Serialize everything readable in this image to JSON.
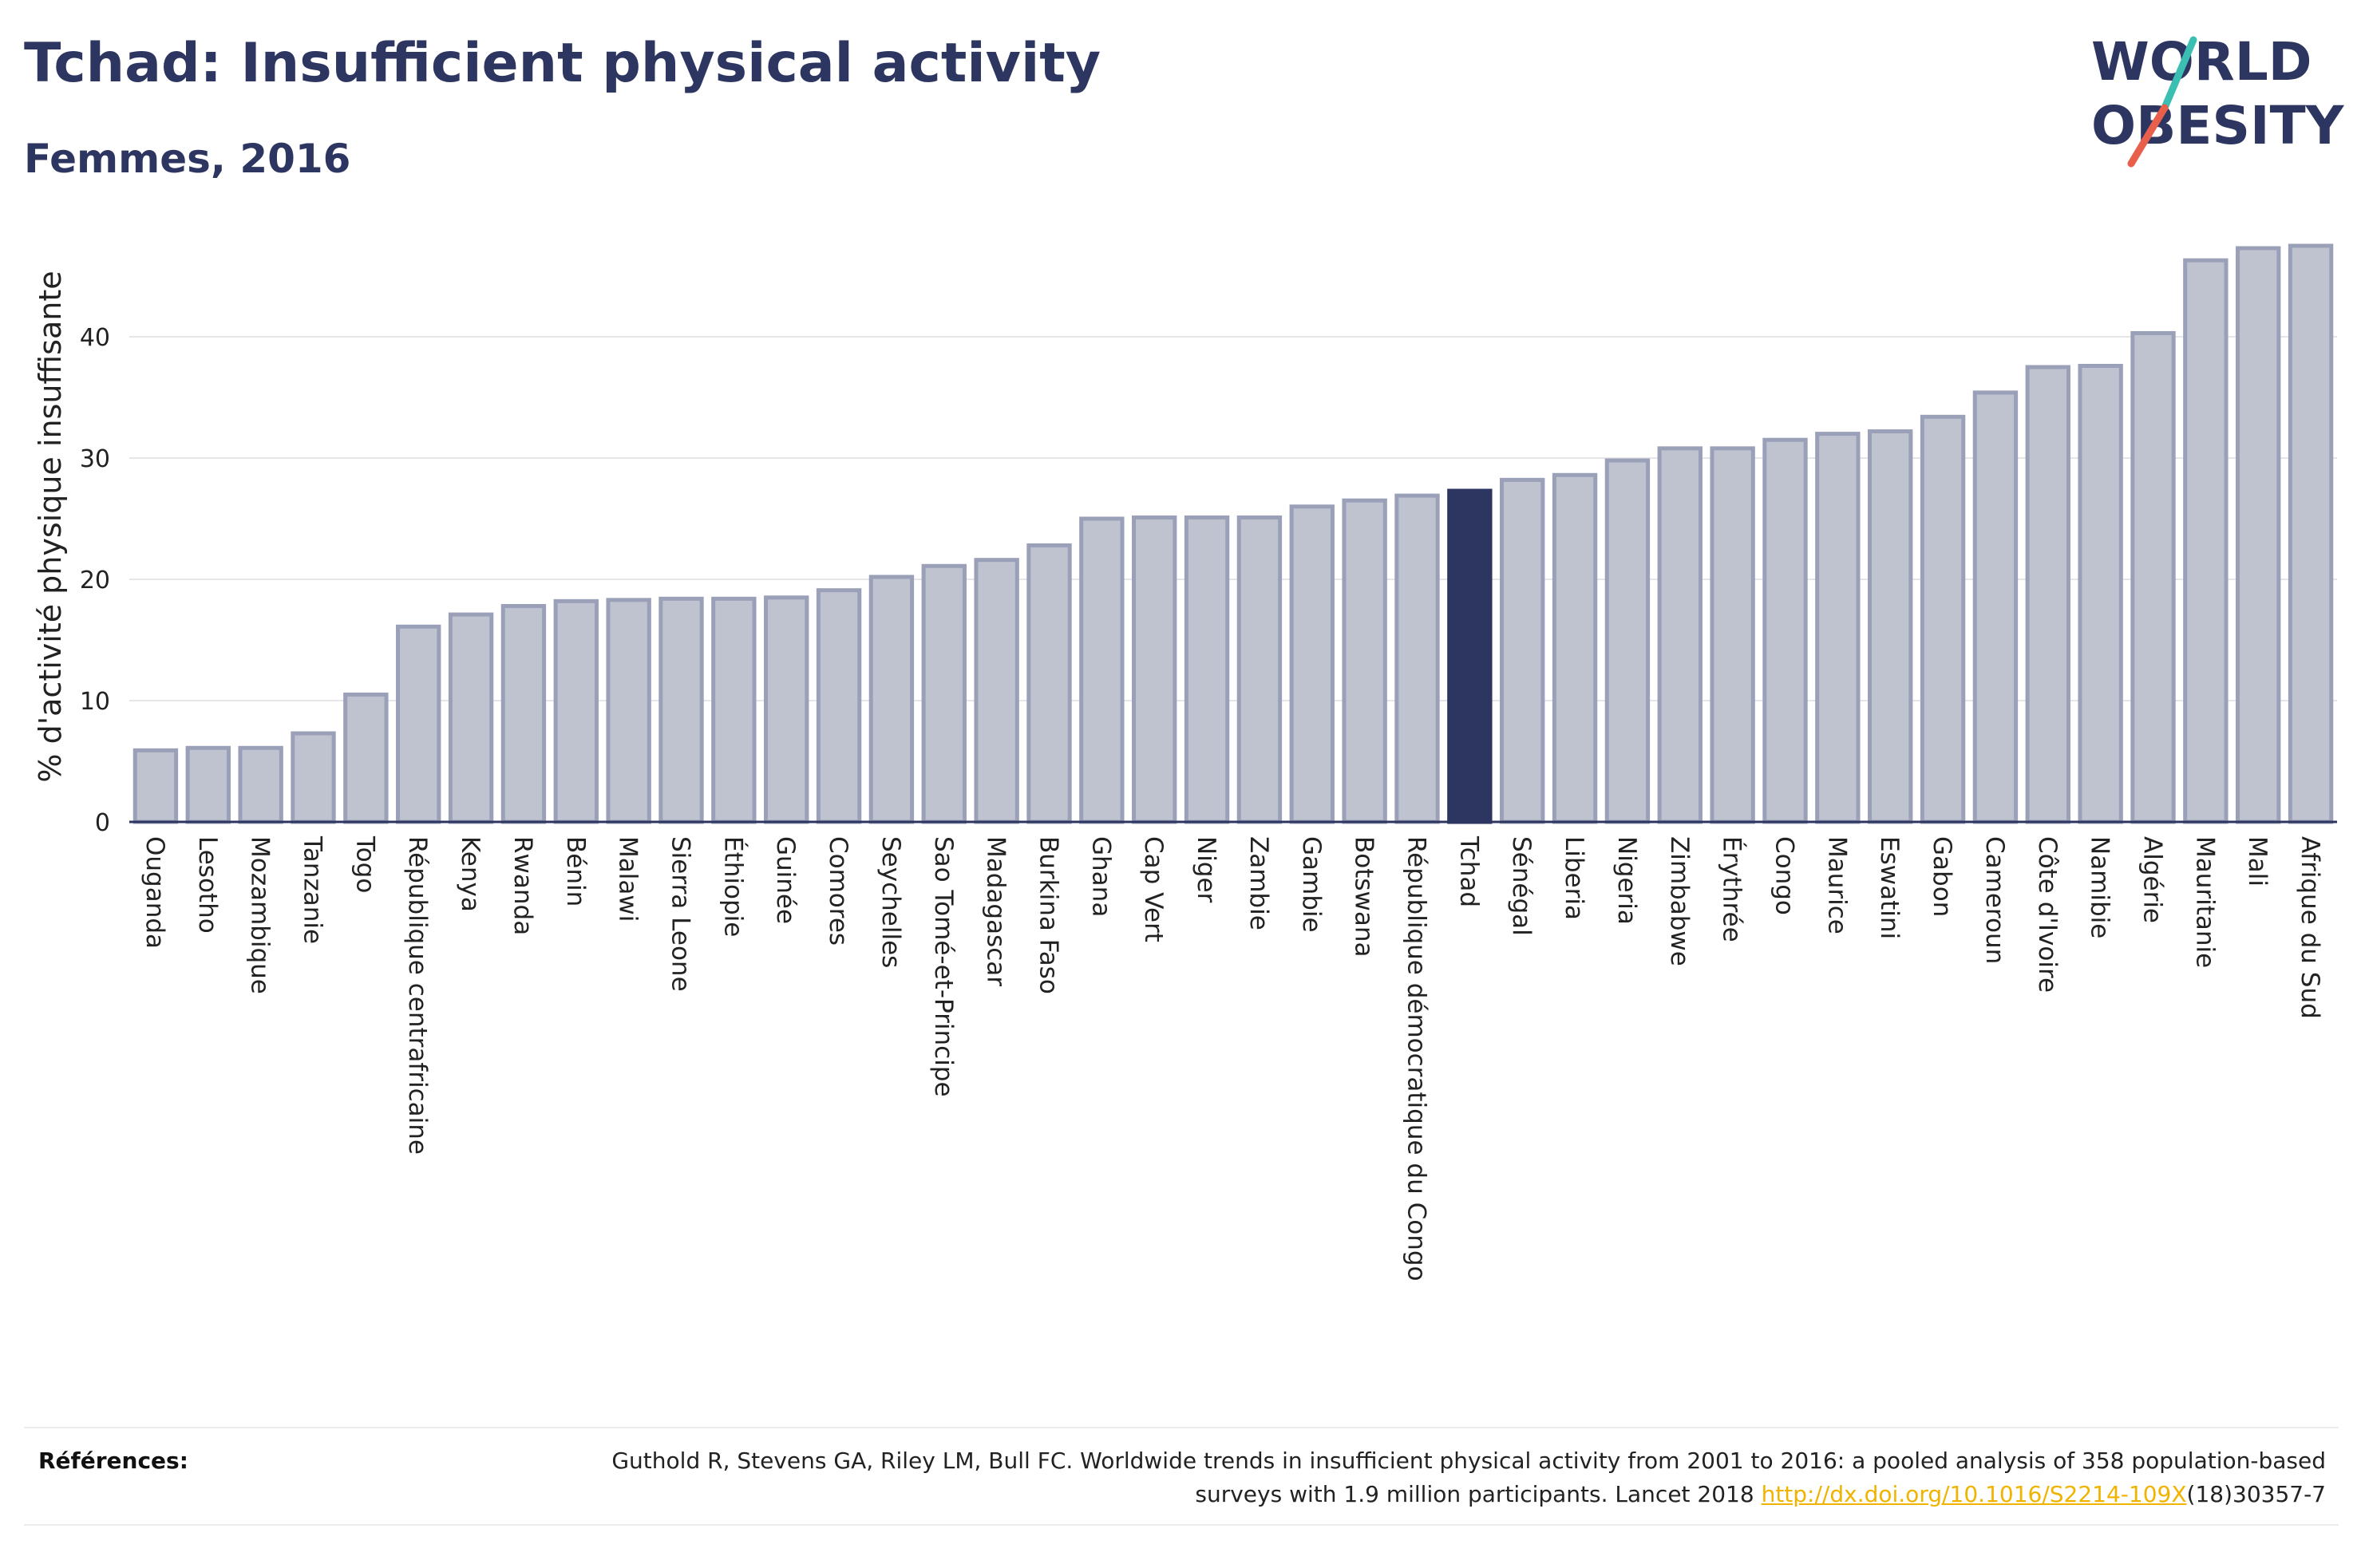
{
  "header": {
    "title": "Tchad: Insufficient physical activity",
    "subtitle": "Femmes, 2016"
  },
  "logo": {
    "line1": "WORLD",
    "line2": "OBESITY",
    "slash_colors": [
      "#3bbfb2",
      "#e8604c"
    ]
  },
  "colors": {
    "bar": "#bfc3d0",
    "bar_border": "#9aa0b8",
    "highlight": "#2d3561",
    "link": "#f0b400"
  },
  "chart_data": {
    "type": "bar",
    "title": "Tchad: Insufficient physical activity",
    "subtitle": "Femmes, 2016",
    "xlabel": "",
    "ylabel": "% d'activité physique insuffisante",
    "ylim": [
      0,
      50
    ],
    "yticks": [
      0,
      10,
      20,
      30,
      40
    ],
    "grid": true,
    "highlight": "Tchad",
    "categories": [
      "Ouganda",
      "Lesotho",
      "Mozambique",
      "Tanzanie",
      "Togo",
      "République centrafricaine",
      "Kenya",
      "Rwanda",
      "Bénin",
      "Malawi",
      "Sierra Leone",
      "Éthiopie",
      "Guinée",
      "Comores",
      "Seychelles",
      "Sao Tomé-et-Principe",
      "Madagascar",
      "Burkina Faso",
      "Ghana",
      "Cap Vert",
      "Niger",
      "Zambie",
      "Gambie",
      "Botswana",
      "République démocratique du Congo",
      "Tchad",
      "Sénégal",
      "Liberia",
      "Nigeria",
      "Zimbabwe",
      "Érythrée",
      "Congo",
      "Maurice",
      "Eswatini",
      "Gabon",
      "Cameroun",
      "Côte d'Ivoire",
      "Namibie",
      "Algérie",
      "Mauritanie",
      "Mali",
      "Afrique du Sud"
    ],
    "values": [
      5.9,
      6.1,
      6.1,
      7.3,
      10.5,
      16.1,
      17.1,
      17.8,
      18.2,
      18.3,
      18.4,
      18.4,
      18.5,
      19.1,
      20.2,
      21.1,
      21.6,
      22.8,
      25.0,
      25.1,
      25.1,
      25.1,
      26.0,
      26.5,
      26.9,
      27.3,
      28.2,
      28.6,
      29.8,
      30.8,
      30.8,
      31.5,
      32.0,
      32.2,
      33.4,
      35.4,
      37.5,
      37.6,
      40.3,
      46.3,
      47.3,
      47.5
    ]
  },
  "references": {
    "label": "Références:",
    "text_before": "Guthold R, Stevens GA, Riley LM, Bull FC. Worldwide trends in insufficient physical activity from 2001 to 2016: a pooled analysis of 358 population-based surveys with 1.9 million participants. Lancet 2018 ",
    "link_text": "http://dx.doi.org/10.1016/S2214-109X",
    "text_after": "(18)30357-7"
  }
}
